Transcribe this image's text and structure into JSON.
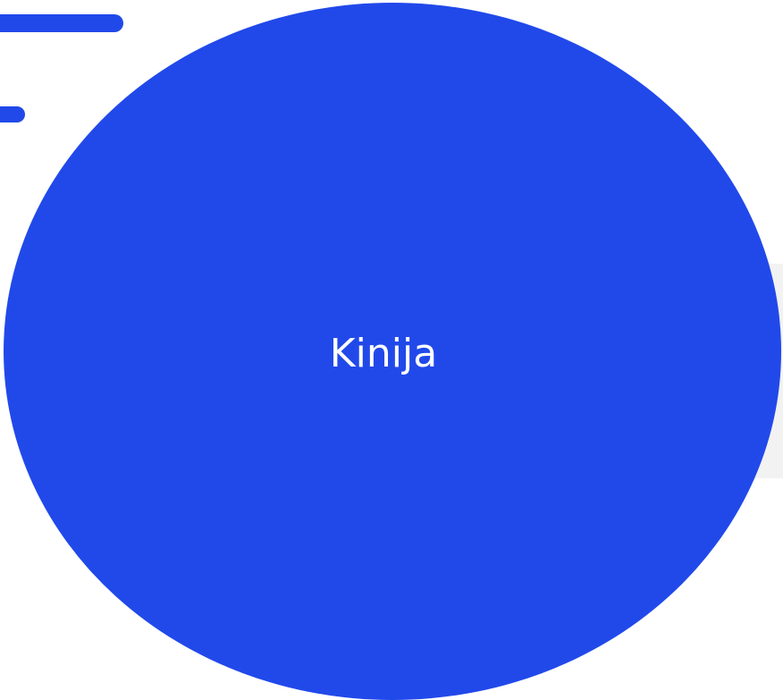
{
  "colors": {
    "accent": "#2149ea",
    "panel": "#f2f2f2",
    "label_text": "#ffffff"
  },
  "circle": {
    "label": "Kinija"
  }
}
